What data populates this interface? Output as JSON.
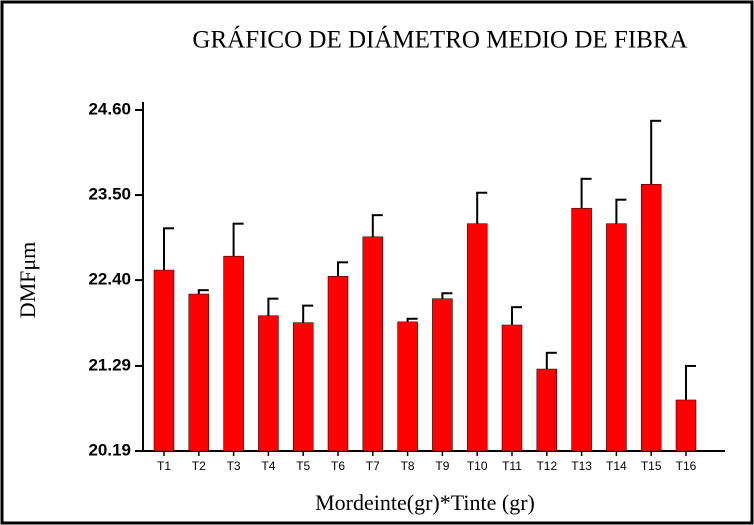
{
  "chart_data": {
    "type": "bar",
    "title": "GRÁFICO DE DIÁMETRO MEDIO DE FIBRA",
    "x_label": "Mordeinte(gr)*Tinte (gr)",
    "y_label": "DMFμm",
    "categories": [
      "T1",
      "T2",
      "T3",
      "T4",
      "T5",
      "T6",
      "T7",
      "T8",
      "T9",
      "T10",
      "T11",
      "T12",
      "T13",
      "T14",
      "T15",
      "T16"
    ],
    "values": [
      22.53,
      22.22,
      22.71,
      21.94,
      21.85,
      22.45,
      22.96,
      21.86,
      22.16,
      23.13,
      21.82,
      21.25,
      23.33,
      23.13,
      23.64,
      20.85
    ],
    "errors": [
      0.54,
      0.05,
      0.42,
      0.22,
      0.22,
      0.18,
      0.28,
      0.04,
      0.07,
      0.4,
      0.23,
      0.21,
      0.38,
      0.31,
      0.82,
      0.44
    ],
    "color": "#ff0000",
    "ylim": [
      20.19,
      24.6
    ],
    "yticks": [
      20.19,
      21.29,
      {
        "value": 22.4,
        "label": "22.40"
      },
      {
        "value": 23.5,
        "label": "23.50"
      },
      {
        "value": 24.6,
        "label": "24.60"
      }
    ],
    "grid": false
  }
}
